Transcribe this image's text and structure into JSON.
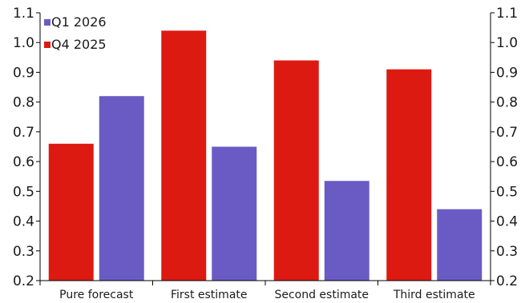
{
  "chart_data": {
    "type": "bar",
    "categories": [
      "Pure forecast",
      "First estimate",
      "Second estimate",
      "Third estimate"
    ],
    "series": [
      {
        "name": "Q4 2025",
        "color": "#dd1a12",
        "values": [
          0.66,
          1.04,
          0.94,
          0.91
        ]
      },
      {
        "name": "Q1 2026",
        "color": "#6a5bc4",
        "values": [
          0.82,
          0.65,
          0.535,
          0.44
        ]
      }
    ],
    "legend_order": [
      "Q1 2026",
      "Q4 2025"
    ],
    "legend_position": "top-left",
    "ylim": [
      0.2,
      1.1
    ],
    "yticks": [
      "0.2",
      "0.3",
      "0.4",
      "0.5",
      "0.6",
      "0.7",
      "0.8",
      "0.9",
      "1.0",
      "1.1"
    ],
    "y_axis_both_sides": true,
    "grid": false,
    "title": "",
    "xlabel": "",
    "ylabel": ""
  }
}
